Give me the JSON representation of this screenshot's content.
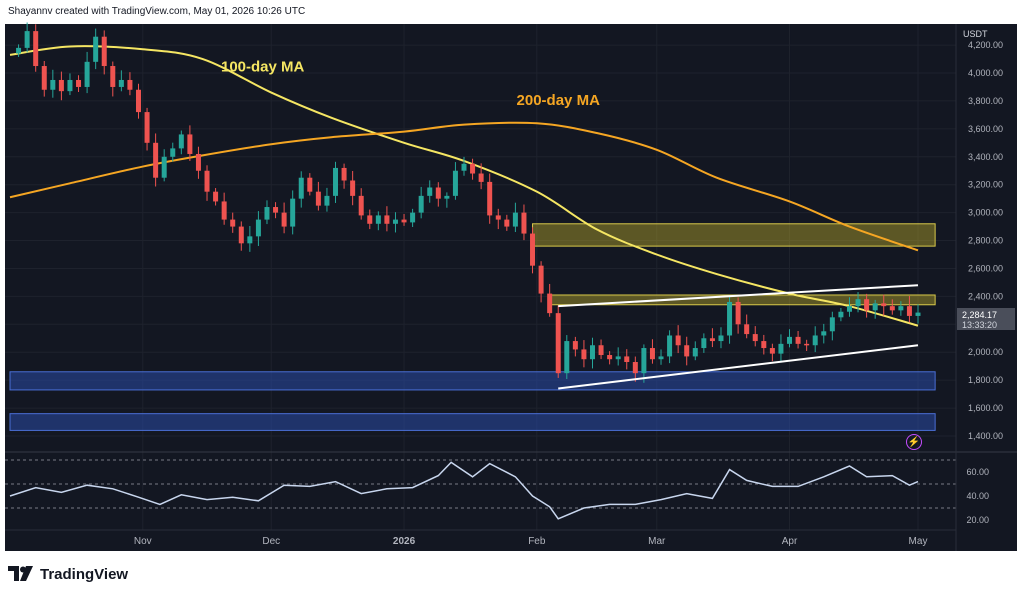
{
  "header": {
    "caption": "Shayannv created with TradingView.com, May 01, 2026 10:26 UTC"
  },
  "brand": {
    "name": "TradingView"
  },
  "colors": {
    "background": "#131722",
    "candle_up": "#26a69a",
    "candle_down": "#ef5350",
    "ma100": "#f5e663",
    "ma200": "#f5a623",
    "supply_zone": "#b5a72a",
    "demand_zone": "#2a4aa6",
    "rsi_line": "#c8d6ee",
    "trendline": "#ffffff"
  },
  "chart_data": [
    {
      "type": "line",
      "title": "",
      "unit": "USDT",
      "ylim": [
        1300,
        4350
      ],
      "y_ticks": [
        1400,
        1600,
        1800,
        2000,
        2200,
        2400,
        2600,
        2800,
        3000,
        3200,
        3400,
        3600,
        3800,
        4000,
        4200
      ],
      "y_tick_labels": [
        "1,400.00",
        "1,600.00",
        "1,800.00",
        "2,000.00",
        "2,200.00",
        "2,400.00",
        "2,600.00",
        "2,800.00",
        "3,000.00",
        "3,200.00",
        "3,400.00",
        "3,600.00",
        "3,800.00",
        "4,000.00",
        "4,200.00"
      ],
      "x_ticks": [
        {
          "label": "Nov",
          "date": "2025-11-01"
        },
        {
          "label": "Dec",
          "date": "2025-12-01"
        },
        {
          "label": "2026",
          "date": "2026-01-01"
        },
        {
          "label": "Feb",
          "date": "2026-02-01"
        },
        {
          "label": "Mar",
          "date": "2026-03-01"
        },
        {
          "label": "Apr",
          "date": "2026-04-01"
        },
        {
          "label": "May",
          "date": "2026-05-01"
        }
      ],
      "last_price": "2,284.17",
      "countdown": "13:33:20",
      "grid": true,
      "price_series": [
        {
          "date": "2025-10-03",
          "close": 4180
        },
        {
          "date": "2025-10-05",
          "close": 4300
        },
        {
          "date": "2025-10-07",
          "close": 4050
        },
        {
          "date": "2025-10-09",
          "close": 3880
        },
        {
          "date": "2025-10-11",
          "close": 3950
        },
        {
          "date": "2025-10-13",
          "close": 3870
        },
        {
          "date": "2025-10-15",
          "close": 3950
        },
        {
          "date": "2025-10-17",
          "close": 3900
        },
        {
          "date": "2025-10-19",
          "close": 4080
        },
        {
          "date": "2025-10-21",
          "close": 4260
        },
        {
          "date": "2025-10-23",
          "close": 4050
        },
        {
          "date": "2025-10-25",
          "close": 3900
        },
        {
          "date": "2025-10-27",
          "close": 3950
        },
        {
          "date": "2025-10-29",
          "close": 3880
        },
        {
          "date": "2025-10-31",
          "close": 3720
        },
        {
          "date": "2025-11-02",
          "close": 3500
        },
        {
          "date": "2025-11-04",
          "close": 3250
        },
        {
          "date": "2025-11-06",
          "close": 3400
        },
        {
          "date": "2025-11-08",
          "close": 3460
        },
        {
          "date": "2025-11-10",
          "close": 3560
        },
        {
          "date": "2025-11-12",
          "close": 3420
        },
        {
          "date": "2025-11-14",
          "close": 3300
        },
        {
          "date": "2025-11-16",
          "close": 3150
        },
        {
          "date": "2025-11-18",
          "close": 3080
        },
        {
          "date": "2025-11-20",
          "close": 2950
        },
        {
          "date": "2025-11-22",
          "close": 2900
        },
        {
          "date": "2025-11-24",
          "close": 2780
        },
        {
          "date": "2025-11-26",
          "close": 2830
        },
        {
          "date": "2025-11-28",
          "close": 2950
        },
        {
          "date": "2025-11-30",
          "close": 3040
        },
        {
          "date": "2025-12-02",
          "close": 3000
        },
        {
          "date": "2025-12-04",
          "close": 2900
        },
        {
          "date": "2025-12-06",
          "close": 3100
        },
        {
          "date": "2025-12-08",
          "close": 3250
        },
        {
          "date": "2025-12-10",
          "close": 3150
        },
        {
          "date": "2025-12-12",
          "close": 3050
        },
        {
          "date": "2025-12-14",
          "close": 3120
        },
        {
          "date": "2025-12-16",
          "close": 3320
        },
        {
          "date": "2025-12-18",
          "close": 3230
        },
        {
          "date": "2025-12-20",
          "close": 3120
        },
        {
          "date": "2025-12-22",
          "close": 2980
        },
        {
          "date": "2025-12-24",
          "close": 2920
        },
        {
          "date": "2025-12-26",
          "close": 2980
        },
        {
          "date": "2025-12-28",
          "close": 2920
        },
        {
          "date": "2025-12-30",
          "close": 2950
        },
        {
          "date": "2026-01-01",
          "close": 2930
        },
        {
          "date": "2026-01-03",
          "close": 3000
        },
        {
          "date": "2026-01-05",
          "close": 3120
        },
        {
          "date": "2026-01-07",
          "close": 3180
        },
        {
          "date": "2026-01-09",
          "close": 3100
        },
        {
          "date": "2026-01-11",
          "close": 3120
        },
        {
          "date": "2026-01-13",
          "close": 3300
        },
        {
          "date": "2026-01-15",
          "close": 3350
        },
        {
          "date": "2026-01-17",
          "close": 3280
        },
        {
          "date": "2026-01-19",
          "close": 3220
        },
        {
          "date": "2026-01-21",
          "close": 2980
        },
        {
          "date": "2026-01-23",
          "close": 2950
        },
        {
          "date": "2026-01-25",
          "close": 2900
        },
        {
          "date": "2026-01-27",
          "close": 3000
        },
        {
          "date": "2026-01-29",
          "close": 2850
        },
        {
          "date": "2026-01-31",
          "close": 2620
        },
        {
          "date": "2026-02-02",
          "close": 2420
        },
        {
          "date": "2026-02-04",
          "close": 2280
        },
        {
          "date": "2026-02-06",
          "close": 1850
        },
        {
          "date": "2026-02-08",
          "close": 2080
        },
        {
          "date": "2026-02-10",
          "close": 2020
        },
        {
          "date": "2026-02-12",
          "close": 1950
        },
        {
          "date": "2026-02-14",
          "close": 2050
        },
        {
          "date": "2026-02-16",
          "close": 1980
        },
        {
          "date": "2026-02-18",
          "close": 1950
        },
        {
          "date": "2026-02-20",
          "close": 1970
        },
        {
          "date": "2026-02-22",
          "close": 1930
        },
        {
          "date": "2026-02-24",
          "close": 1850
        },
        {
          "date": "2026-02-26",
          "close": 2030
        },
        {
          "date": "2026-02-28",
          "close": 1950
        },
        {
          "date": "2026-03-02",
          "close": 1970
        },
        {
          "date": "2026-03-04",
          "close": 2120
        },
        {
          "date": "2026-03-06",
          "close": 2050
        },
        {
          "date": "2026-03-08",
          "close": 1970
        },
        {
          "date": "2026-03-10",
          "close": 2030
        },
        {
          "date": "2026-03-12",
          "close": 2100
        },
        {
          "date": "2026-03-14",
          "close": 2080
        },
        {
          "date": "2026-03-16",
          "close": 2120
        },
        {
          "date": "2026-03-18",
          "close": 2360
        },
        {
          "date": "2026-03-20",
          "close": 2200
        },
        {
          "date": "2026-03-22",
          "close": 2130
        },
        {
          "date": "2026-03-24",
          "close": 2080
        },
        {
          "date": "2026-03-26",
          "close": 2030
        },
        {
          "date": "2026-03-28",
          "close": 1990
        },
        {
          "date": "2026-03-30",
          "close": 2060
        },
        {
          "date": "2026-04-01",
          "close": 2110
        },
        {
          "date": "2026-04-03",
          "close": 2060
        },
        {
          "date": "2026-04-05",
          "close": 2050
        },
        {
          "date": "2026-04-07",
          "close": 2120
        },
        {
          "date": "2026-04-09",
          "close": 2150
        },
        {
          "date": "2026-04-11",
          "close": 2250
        },
        {
          "date": "2026-04-13",
          "close": 2290
        },
        {
          "date": "2026-04-15",
          "close": 2330
        },
        {
          "date": "2026-04-17",
          "close": 2380
        },
        {
          "date": "2026-04-19",
          "close": 2300
        },
        {
          "date": "2026-04-21",
          "close": 2350
        },
        {
          "date": "2026-04-23",
          "close": 2330
        },
        {
          "date": "2026-04-25",
          "close": 2300
        },
        {
          "date": "2026-04-27",
          "close": 2330
        },
        {
          "date": "2026-04-29",
          "close": 2260
        },
        {
          "date": "2026-05-01",
          "close": 2284
        }
      ],
      "series": [
        {
          "name": "100-day MA",
          "values": [
            {
              "date": "2025-10-01",
              "value": 4130
            },
            {
              "date": "2025-10-15",
              "value": 4190
            },
            {
              "date": "2025-11-01",
              "value": 4170
            },
            {
              "date": "2025-11-15",
              "value": 4100
            },
            {
              "date": "2025-12-01",
              "value": 3860
            },
            {
              "date": "2025-12-15",
              "value": 3680
            },
            {
              "date": "2026-01-01",
              "value": 3500
            },
            {
              "date": "2026-01-15",
              "value": 3370
            },
            {
              "date": "2026-02-01",
              "value": 3150
            },
            {
              "date": "2026-02-15",
              "value": 2880
            },
            {
              "date": "2026-03-01",
              "value": 2700
            },
            {
              "date": "2026-03-15",
              "value": 2560
            },
            {
              "date": "2026-04-01",
              "value": 2420
            },
            {
              "date": "2026-04-15",
              "value": 2330
            },
            {
              "date": "2026-05-01",
              "value": 2190
            }
          ]
        },
        {
          "name": "200-day MA",
          "values": [
            {
              "date": "2025-10-01",
              "value": 3110
            },
            {
              "date": "2025-10-15",
              "value": 3210
            },
            {
              "date": "2025-11-01",
              "value": 3330
            },
            {
              "date": "2025-11-15",
              "value": 3410
            },
            {
              "date": "2025-12-01",
              "value": 3490
            },
            {
              "date": "2025-12-15",
              "value": 3540
            },
            {
              "date": "2026-01-01",
              "value": 3580
            },
            {
              "date": "2026-01-15",
              "value": 3630
            },
            {
              "date": "2026-02-01",
              "value": 3640
            },
            {
              "date": "2026-02-15",
              "value": 3570
            },
            {
              "date": "2026-03-01",
              "value": 3450
            },
            {
              "date": "2026-03-15",
              "value": 3250
            },
            {
              "date": "2026-04-01",
              "value": 3080
            },
            {
              "date": "2026-04-15",
              "value": 2900
            },
            {
              "date": "2026-05-01",
              "value": 2730
            }
          ]
        }
      ],
      "zones": [
        {
          "kind": "supply",
          "from": 2760,
          "to": 2920,
          "start": "2026-01-31",
          "end": "2026-05-05"
        },
        {
          "kind": "supply",
          "from": 2340,
          "to": 2410,
          "start": "2026-02-04",
          "end": "2026-05-05"
        },
        {
          "kind": "demand",
          "from": 1730,
          "to": 1860,
          "start": "2025-10-01",
          "end": "2026-05-05"
        },
        {
          "kind": "demand",
          "from": 1440,
          "to": 1560,
          "start": "2025-10-01",
          "end": "2026-05-05"
        }
      ],
      "trendlines": [
        {
          "from": {
            "date": "2026-02-06",
            "value": 2330
          },
          "to": {
            "date": "2026-05-01",
            "value": 2480
          }
        },
        {
          "from": {
            "date": "2026-02-06",
            "value": 1740
          },
          "to": {
            "date": "2026-05-01",
            "value": 2050
          }
        }
      ],
      "annotations": [
        {
          "text": "100-day MA",
          "date": "2025-11-29",
          "value": 4010
        },
        {
          "text": "200-day MA",
          "date": "2026-02-06",
          "value": 3770
        }
      ]
    },
    {
      "type": "line",
      "title": "",
      "ylim": [
        10,
        80
      ],
      "y_ticks": [
        20,
        40,
        60
      ],
      "y_tick_labels": [
        "20.00",
        "40.00",
        "60.00"
      ],
      "reference_lines": [
        30,
        50,
        70
      ],
      "series": [
        {
          "name": "",
          "values": [
            {
              "date": "2025-10-01",
              "value": 40
            },
            {
              "date": "2025-10-07",
              "value": 47
            },
            {
              "date": "2025-10-13",
              "value": 43
            },
            {
              "date": "2025-10-19",
              "value": 49
            },
            {
              "date": "2025-10-25",
              "value": 46
            },
            {
              "date": "2025-10-31",
              "value": 39
            },
            {
              "date": "2025-11-05",
              "value": 33
            },
            {
              "date": "2025-11-10",
              "value": 41
            },
            {
              "date": "2025-11-16",
              "value": 37
            },
            {
              "date": "2025-11-22",
              "value": 39
            },
            {
              "date": "2025-11-28",
              "value": 36
            },
            {
              "date": "2025-12-04",
              "value": 49
            },
            {
              "date": "2025-12-10",
              "value": 48
            },
            {
              "date": "2025-12-16",
              "value": 52
            },
            {
              "date": "2025-12-22",
              "value": 42
            },
            {
              "date": "2025-12-28",
              "value": 46
            },
            {
              "date": "2026-01-03",
              "value": 47
            },
            {
              "date": "2026-01-09",
              "value": 57
            },
            {
              "date": "2026-01-12",
              "value": 68
            },
            {
              "date": "2026-01-17",
              "value": 56
            },
            {
              "date": "2026-01-21",
              "value": 67
            },
            {
              "date": "2026-01-27",
              "value": 56
            },
            {
              "date": "2026-01-31",
              "value": 40
            },
            {
              "date": "2026-02-04",
              "value": 31
            },
            {
              "date": "2026-02-06",
              "value": 21
            },
            {
              "date": "2026-02-12",
              "value": 30
            },
            {
              "date": "2026-02-18",
              "value": 33
            },
            {
              "date": "2026-02-24",
              "value": 33
            },
            {
              "date": "2026-03-02",
              "value": 37
            },
            {
              "date": "2026-03-08",
              "value": 42
            },
            {
              "date": "2026-03-14",
              "value": 38
            },
            {
              "date": "2026-03-18",
              "value": 62
            },
            {
              "date": "2026-03-22",
              "value": 53
            },
            {
              "date": "2026-03-28",
              "value": 48
            },
            {
              "date": "2026-04-03",
              "value": 48
            },
            {
              "date": "2026-04-09",
              "value": 56
            },
            {
              "date": "2026-04-15",
              "value": 65
            },
            {
              "date": "2026-04-19",
              "value": 56
            },
            {
              "date": "2026-04-25",
              "value": 57
            },
            {
              "date": "2026-04-29",
              "value": 49
            },
            {
              "date": "2026-05-01",
              "value": 52
            }
          ]
        }
      ]
    }
  ]
}
